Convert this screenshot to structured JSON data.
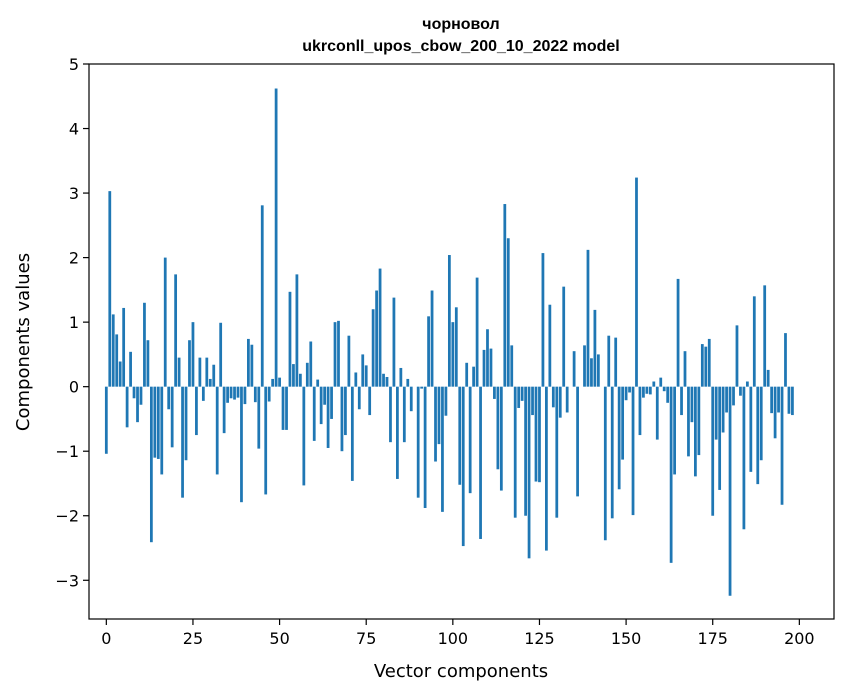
{
  "chart_data": {
    "type": "bar",
    "title": "чорновол",
    "subtitle": "ukrconll_upos_cbow_200_10_2022 model",
    "xlabel": "Vector components",
    "ylabel": "Components values",
    "xlim": [
      -5,
      210
    ],
    "ylim": [
      -3.6,
      5.0
    ],
    "xticks": [
      0,
      25,
      50,
      75,
      100,
      125,
      150,
      175,
      200
    ],
    "xtick_labels": [
      "0",
      "25",
      "50",
      "75",
      "100",
      "125",
      "150",
      "175",
      "200"
    ],
    "yticks": [
      -3,
      -2,
      -1,
      0,
      1,
      2,
      3,
      4,
      5
    ],
    "ytick_labels": [
      "−3",
      "−2",
      "−1",
      "0",
      "1",
      "2",
      "3",
      "4",
      "5"
    ],
    "grid": false,
    "bar_color": "#1f77b4",
    "values": [
      -1.04,
      3.03,
      1.12,
      0.81,
      0.39,
      1.22,
      -0.63,
      0.54,
      -0.18,
      -0.55,
      -0.28,
      1.3,
      0.72,
      -2.41,
      -1.1,
      -1.12,
      -1.36,
      2.0,
      -0.35,
      -0.94,
      1.74,
      0.45,
      -1.72,
      -1.14,
      0.72,
      1.0,
      -0.75,
      0.45,
      -0.22,
      0.45,
      0.12,
      0.34,
      -1.36,
      0.99,
      -0.72,
      -0.25,
      -0.18,
      -0.2,
      -0.17,
      -1.79,
      -0.27,
      0.74,
      0.65,
      -0.24,
      -0.96,
      2.81,
      -1.67,
      -0.23,
      0.12,
      4.62,
      0.14,
      -0.67,
      -0.67,
      1.47,
      0.35,
      1.74,
      0.2,
      -1.53,
      0.37,
      0.7,
      -0.84,
      0.11,
      -0.58,
      -0.28,
      -0.95,
      -0.5,
      1.0,
      1.02,
      -1.0,
      -0.75,
      0.79,
      -1.46,
      0.22,
      -0.35,
      0.5,
      0.33,
      -0.44,
      1.2,
      1.49,
      1.83,
      0.2,
      0.15,
      -0.86,
      1.38,
      -1.43,
      0.29,
      -0.86,
      0.12,
      -0.38,
      0.0,
      -1.72,
      -0.03,
      -1.88,
      1.09,
      1.49,
      -1.16,
      -0.89,
      -1.94,
      -0.45,
      2.04,
      1.0,
      1.23,
      -1.52,
      -2.47,
      0.37,
      -1.65,
      0.31,
      1.69,
      -2.36,
      0.57,
      0.89,
      0.59,
      -0.19,
      -1.28,
      -1.61,
      2.83,
      2.3,
      0.64,
      -2.03,
      -0.33,
      -0.22,
      -2.0,
      -2.66,
      -0.44,
      -1.47,
      -1.48,
      2.07,
      -2.54,
      1.27,
      -0.32,
      -2.03,
      -0.48,
      1.55,
      -0.4,
      0.0,
      0.55,
      -1.7,
      0.0,
      0.64,
      2.12,
      0.44,
      1.19,
      0.5,
      0.0,
      -2.38,
      0.79,
      -2.04,
      0.76,
      -1.59,
      -1.13,
      -0.21,
      -0.09,
      -1.99,
      3.24,
      -0.75,
      -0.17,
      -0.11,
      -0.12,
      0.08,
      -0.82,
      0.14,
      -0.07,
      -0.25,
      -2.73,
      -1.36,
      1.67,
      -0.44,
      0.55,
      -1.08,
      -0.55,
      -1.39,
      -1.06,
      0.66,
      0.62,
      0.74,
      -2.0,
      -0.82,
      -1.6,
      -0.71,
      -0.4,
      -3.24,
      -0.29,
      0.95,
      -0.14,
      -2.21,
      0.08,
      -1.32,
      1.4,
      -1.51,
      -1.14,
      1.57,
      0.26,
      -0.41,
      -0.8,
      -0.4,
      -1.83,
      0.83,
      -0.42,
      -0.44
    ]
  }
}
